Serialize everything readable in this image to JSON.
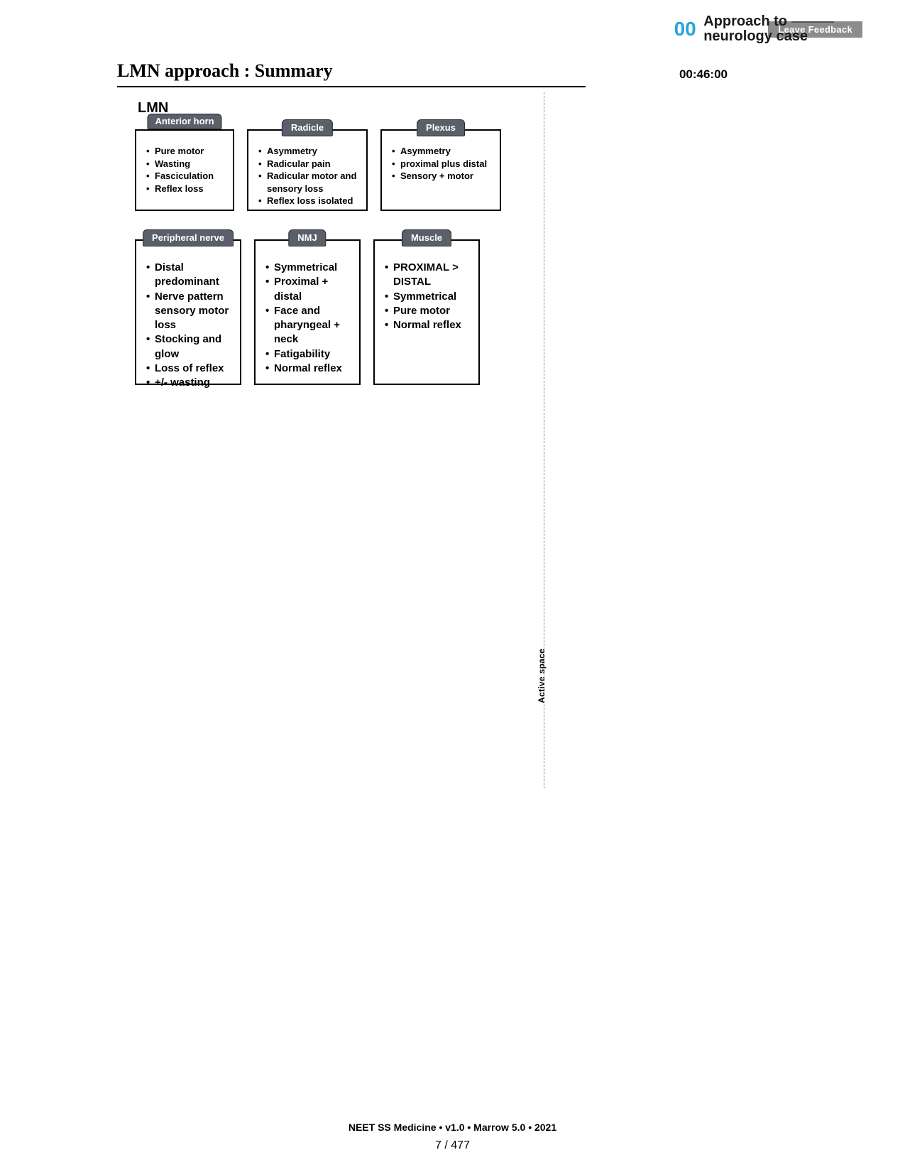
{
  "chapter": {
    "number": "00",
    "line1": "Approach to",
    "line2": "neurology case"
  },
  "feedback_label": "Leave Feedback",
  "heading": "LMN approach : Summary",
  "timestamp": "00:46:00",
  "section_label": "LMN",
  "row1": [
    {
      "title": "Anterior horn",
      "items": [
        "Pure motor",
        "Wasting",
        "Fasciculation",
        "Reflex loss"
      ]
    },
    {
      "title": "Radicle",
      "items": [
        "Asymmetry",
        "Radicular pain",
        "Radicular motor and sensory  loss",
        "Reflex loss isolated"
      ]
    },
    {
      "title": "Plexus",
      "items": [
        "Asymmetry",
        "proximal plus distal",
        "Sensory + motor"
      ]
    }
  ],
  "row2": [
    {
      "title": "Peripheral nerve",
      "items": [
        "Distal predominant",
        "Nerve pattern sensory motor loss",
        "Stocking and glow",
        "Loss of reflex",
        "+/- wasting"
      ]
    },
    {
      "title": "NMJ",
      "items": [
        "Symmetrical",
        "Proximal + distal",
        "Face and pharyngeal + neck",
        "Fatigability",
        "Normal reflex"
      ]
    },
    {
      "title": "Muscle",
      "items": [
        "PROXIMAL > DISTAL",
        "Symmetrical",
        "Pure motor",
        "Normal reflex"
      ]
    }
  ],
  "active_space_label": "Active space",
  "footer": "NEET SS Medicine • v1.0 • Marrow 5.0 • 2021",
  "page_counter": "7 / 477",
  "colors": {
    "chapter_number": "#2aa3d9",
    "tab_bg": "#5a5f6a",
    "tab_text": "#ffffff",
    "feedback_bg": "#8c8c8c",
    "border": "#000000",
    "dotted": "#888888"
  }
}
